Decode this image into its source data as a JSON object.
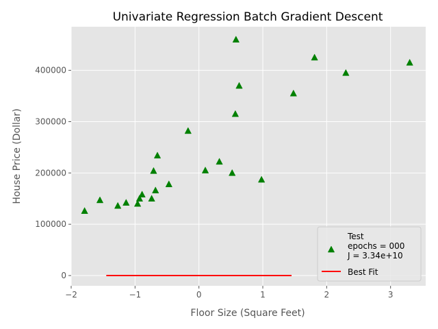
{
  "chart_data": {
    "type": "scatter",
    "title": "Univariate Regression Batch Gradient Descent",
    "xlabel": "Floor Size (Square Feet)",
    "ylabel": "House Price (Dollar)",
    "xlim": [
      -2.0,
      3.55
    ],
    "ylim": [
      -20000,
      485000
    ],
    "xticks": [
      -2,
      -1,
      0,
      1,
      2,
      3
    ],
    "xtick_labels": [
      "−2",
      "−1",
      "0",
      "1",
      "2",
      "3"
    ],
    "yticks": [
      0,
      100000,
      200000,
      300000,
      400000
    ],
    "ytick_labels": [
      "0",
      "100000",
      "200000",
      "300000",
      "400000"
    ],
    "grid": true,
    "legend_position": "bottom-right",
    "series": [
      {
        "name": "Test\nepochs = 000\nJ = 3.34e+10",
        "kind": "scatter",
        "marker": "triangle",
        "color": "#008000",
        "points": [
          [
            -1.79,
            126000
          ],
          [
            -1.55,
            147000
          ],
          [
            -1.27,
            136000
          ],
          [
            -1.14,
            142000
          ],
          [
            -0.96,
            140000
          ],
          [
            -0.93,
            150000
          ],
          [
            -0.89,
            158000
          ],
          [
            -0.74,
            150000
          ],
          [
            -0.71,
            204000
          ],
          [
            -0.68,
            166000
          ],
          [
            -0.65,
            234000
          ],
          [
            -0.47,
            178000
          ],
          [
            -0.17,
            282000
          ],
          [
            0.1,
            205000
          ],
          [
            0.32,
            222000
          ],
          [
            0.52,
            200000
          ],
          [
            0.57,
            315000
          ],
          [
            0.58,
            460000
          ],
          [
            0.63,
            370000
          ],
          [
            0.98,
            187000
          ],
          [
            1.48,
            355000
          ],
          [
            1.81,
            425000
          ],
          [
            2.3,
            395000
          ],
          [
            3.3,
            415000
          ]
        ]
      },
      {
        "name": "Best Fit",
        "kind": "line",
        "color": "#ff0000",
        "points": [
          [
            -1.45,
            0
          ],
          [
            1.45,
            0
          ]
        ]
      }
    ]
  }
}
